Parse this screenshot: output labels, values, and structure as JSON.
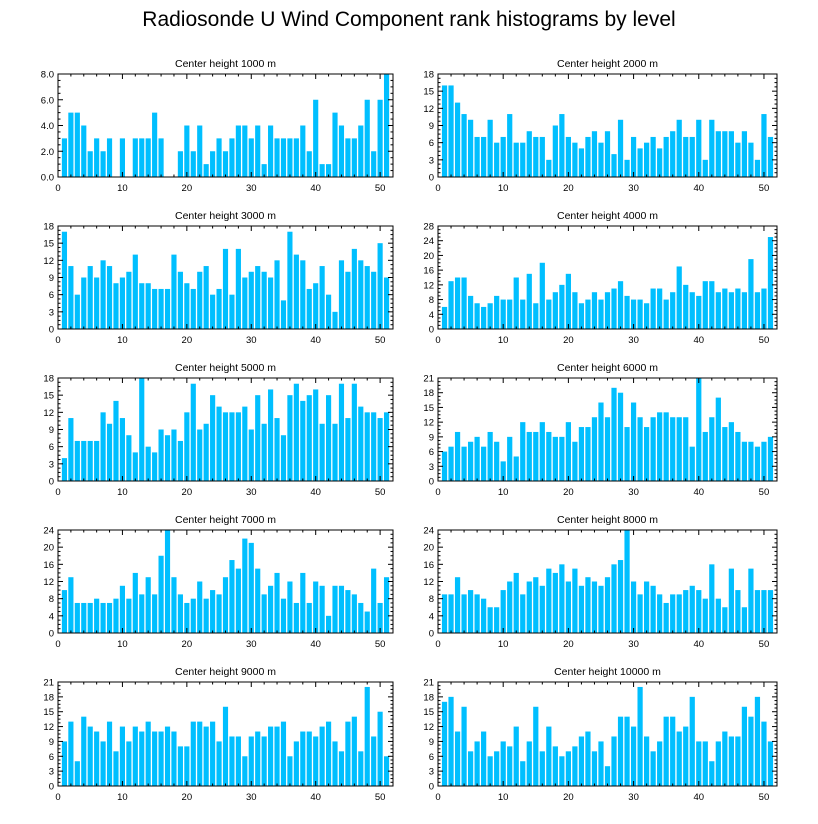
{
  "title": "Radiosonde U Wind Component rank histograms by level",
  "colors": {
    "bar": "#00BFFF",
    "axis": "#000000",
    "background": "#ffffff"
  },
  "chart_data": [
    {
      "type": "bar",
      "title": "Center height 1000 m",
      "x": [
        1,
        2,
        3,
        4,
        5,
        6,
        7,
        8,
        9,
        10,
        11,
        12,
        13,
        14,
        15,
        16,
        17,
        18,
        19,
        20,
        21,
        22,
        23,
        24,
        25,
        26,
        27,
        28,
        29,
        30,
        31,
        32,
        33,
        34,
        35,
        36,
        37,
        38,
        39,
        40,
        41,
        42,
        43,
        44,
        45,
        46,
        47,
        48,
        49,
        50,
        51
      ],
      "values": [
        3,
        5,
        5,
        4,
        2,
        3,
        2,
        3,
        0,
        3,
        0,
        3,
        3,
        3,
        5,
        3,
        0,
        0,
        2,
        4,
        2,
        4,
        1,
        2,
        3,
        2,
        3,
        4,
        4,
        3,
        4,
        1,
        4,
        3,
        3,
        3,
        3,
        4,
        2,
        6,
        1,
        1,
        5,
        4,
        3,
        3,
        4,
        6,
        2,
        6,
        8
      ],
      "xlim": [
        0,
        52
      ],
      "ylim": [
        0,
        8
      ],
      "xticks": [
        0,
        10,
        20,
        30,
        40,
        50
      ],
      "yticks": [
        0,
        2,
        4,
        6,
        8
      ],
      "ytick_labels": [
        "0.0",
        "2.0",
        "4.0",
        "6.0",
        "8.0"
      ],
      "xlabel": "",
      "ylabel": ""
    },
    {
      "type": "bar",
      "title": "Center height 2000 m",
      "x": [
        1,
        2,
        3,
        4,
        5,
        6,
        7,
        8,
        9,
        10,
        11,
        12,
        13,
        14,
        15,
        16,
        17,
        18,
        19,
        20,
        21,
        22,
        23,
        24,
        25,
        26,
        27,
        28,
        29,
        30,
        31,
        32,
        33,
        34,
        35,
        36,
        37,
        38,
        39,
        40,
        41,
        42,
        43,
        44,
        45,
        46,
        47,
        48,
        49,
        50,
        51
      ],
      "values": [
        16,
        16,
        13,
        11,
        10,
        7,
        7,
        10,
        6,
        7,
        11,
        6,
        6,
        8,
        7,
        7,
        3,
        9,
        11,
        7,
        6,
        5,
        7,
        8,
        6,
        8,
        4,
        10,
        3,
        7,
        5,
        6,
        7,
        5,
        7,
        8,
        10,
        7,
        7,
        10,
        3,
        10,
        8,
        8,
        8,
        6,
        8,
        6,
        3,
        11,
        7
      ],
      "xlim": [
        0,
        52
      ],
      "ylim": [
        0,
        18
      ],
      "xticks": [
        0,
        10,
        20,
        30,
        40,
        50
      ],
      "yticks": [
        0,
        3,
        6,
        9,
        12,
        15,
        18
      ],
      "ytick_labels": [
        "0",
        "3",
        "6",
        "9",
        "12",
        "15",
        "18"
      ],
      "xlabel": "",
      "ylabel": ""
    },
    {
      "type": "bar",
      "title": "Center height 3000 m",
      "x": [
        1,
        2,
        3,
        4,
        5,
        6,
        7,
        8,
        9,
        10,
        11,
        12,
        13,
        14,
        15,
        16,
        17,
        18,
        19,
        20,
        21,
        22,
        23,
        24,
        25,
        26,
        27,
        28,
        29,
        30,
        31,
        32,
        33,
        34,
        35,
        36,
        37,
        38,
        39,
        40,
        41,
        42,
        43,
        44,
        45,
        46,
        47,
        48,
        49,
        50,
        51
      ],
      "values": [
        17,
        11,
        6,
        9,
        11,
        9,
        12,
        11,
        8,
        9,
        10,
        13,
        8,
        8,
        7,
        7,
        7,
        13,
        10,
        8,
        7,
        10,
        11,
        6,
        7,
        14,
        6,
        14,
        9,
        10,
        11,
        10,
        9,
        12,
        5,
        17,
        13,
        12,
        7,
        8,
        11,
        6,
        3,
        12,
        10,
        14,
        12,
        11,
        10,
        15,
        9
      ],
      "xlim": [
        0,
        52
      ],
      "ylim": [
        0,
        18
      ],
      "xticks": [
        0,
        10,
        20,
        30,
        40,
        50
      ],
      "yticks": [
        0,
        3,
        6,
        9,
        12,
        15,
        18
      ],
      "ytick_labels": [
        "0",
        "3",
        "6",
        "9",
        "12",
        "15",
        "18"
      ],
      "xlabel": "",
      "ylabel": ""
    },
    {
      "type": "bar",
      "title": "Center height 4000 m",
      "x": [
        1,
        2,
        3,
        4,
        5,
        6,
        7,
        8,
        9,
        10,
        11,
        12,
        13,
        14,
        15,
        16,
        17,
        18,
        19,
        20,
        21,
        22,
        23,
        24,
        25,
        26,
        27,
        28,
        29,
        30,
        31,
        32,
        33,
        34,
        35,
        36,
        37,
        38,
        39,
        40,
        41,
        42,
        43,
        44,
        45,
        46,
        47,
        48,
        49,
        50,
        51
      ],
      "values": [
        6,
        13,
        14,
        14,
        9,
        7,
        6,
        7,
        9,
        8,
        8,
        14,
        8,
        15,
        7,
        18,
        8,
        10,
        12,
        15,
        10,
        7,
        8,
        10,
        8,
        10,
        11,
        13,
        9,
        8,
        8,
        7,
        11,
        11,
        8,
        10,
        17,
        12,
        10,
        9,
        13,
        13,
        10,
        11,
        10,
        11,
        10,
        19,
        10,
        11,
        25
      ],
      "xlim": [
        0,
        52
      ],
      "ylim": [
        0,
        28
      ],
      "xticks": [
        0,
        10,
        20,
        30,
        40,
        50
      ],
      "yticks": [
        0,
        4,
        8,
        12,
        16,
        20,
        24,
        28
      ],
      "ytick_labels": [
        "0",
        "4",
        "8",
        "12",
        "16",
        "20",
        "24",
        "28"
      ],
      "xlabel": "",
      "ylabel": ""
    },
    {
      "type": "bar",
      "title": "Center height 5000 m",
      "x": [
        1,
        2,
        3,
        4,
        5,
        6,
        7,
        8,
        9,
        10,
        11,
        12,
        13,
        14,
        15,
        16,
        17,
        18,
        19,
        20,
        21,
        22,
        23,
        24,
        25,
        26,
        27,
        28,
        29,
        30,
        31,
        32,
        33,
        34,
        35,
        36,
        37,
        38,
        39,
        40,
        41,
        42,
        43,
        44,
        45,
        46,
        47,
        48,
        49,
        50,
        51
      ],
      "values": [
        4,
        11,
        7,
        7,
        7,
        7,
        12,
        10,
        14,
        11,
        8,
        5,
        18,
        6,
        5,
        9,
        8,
        9,
        7,
        12,
        17,
        9,
        10,
        15,
        13,
        12,
        12,
        12,
        13,
        9,
        15,
        10,
        16,
        11,
        8,
        15,
        17,
        14,
        15,
        16,
        10,
        15,
        10,
        17,
        11,
        17,
        13,
        12,
        12,
        11,
        12
      ],
      "xlim": [
        0,
        52
      ],
      "ylim": [
        0,
        18
      ],
      "xticks": [
        0,
        10,
        20,
        30,
        40,
        50
      ],
      "yticks": [
        0,
        3,
        6,
        9,
        12,
        15,
        18
      ],
      "ytick_labels": [
        "0",
        "3",
        "6",
        "9",
        "12",
        "15",
        "18"
      ],
      "xlabel": "",
      "ylabel": ""
    },
    {
      "type": "bar",
      "title": "Center height 6000 m",
      "x": [
        1,
        2,
        3,
        4,
        5,
        6,
        7,
        8,
        9,
        10,
        11,
        12,
        13,
        14,
        15,
        16,
        17,
        18,
        19,
        20,
        21,
        22,
        23,
        24,
        25,
        26,
        27,
        28,
        29,
        30,
        31,
        32,
        33,
        34,
        35,
        36,
        37,
        38,
        39,
        40,
        41,
        42,
        43,
        44,
        45,
        46,
        47,
        48,
        49,
        50,
        51
      ],
      "values": [
        6,
        7,
        10,
        7,
        8,
        9,
        7,
        10,
        8,
        4,
        9,
        5,
        12,
        10,
        10,
        12,
        10,
        9,
        9,
        12,
        8,
        11,
        11,
        13,
        16,
        13,
        19,
        18,
        11,
        16,
        13,
        11,
        13,
        14,
        14,
        13,
        13,
        13,
        7,
        21,
        10,
        13,
        17,
        11,
        12,
        10,
        8,
        8,
        7,
        8,
        9
      ],
      "xlim": [
        0,
        52
      ],
      "ylim": [
        0,
        21
      ],
      "xticks": [
        0,
        10,
        20,
        30,
        40,
        50
      ],
      "yticks": [
        0,
        3,
        6,
        9,
        12,
        15,
        18,
        21
      ],
      "ytick_labels": [
        "0",
        "3",
        "6",
        "9",
        "12",
        "15",
        "18",
        "21"
      ],
      "xlabel": "",
      "ylabel": ""
    },
    {
      "type": "bar",
      "title": "Center height 7000 m",
      "x": [
        1,
        2,
        3,
        4,
        5,
        6,
        7,
        8,
        9,
        10,
        11,
        12,
        13,
        14,
        15,
        16,
        17,
        18,
        19,
        20,
        21,
        22,
        23,
        24,
        25,
        26,
        27,
        28,
        29,
        30,
        31,
        32,
        33,
        34,
        35,
        36,
        37,
        38,
        39,
        40,
        41,
        42,
        43,
        44,
        45,
        46,
        47,
        48,
        49,
        50,
        51
      ],
      "values": [
        10,
        13,
        7,
        7,
        7,
        8,
        7,
        7,
        8,
        11,
        8,
        14,
        9,
        13,
        9,
        18,
        24,
        13,
        9,
        7,
        8,
        12,
        8,
        10,
        9,
        13,
        17,
        15,
        22,
        21,
        15,
        9,
        11,
        14,
        8,
        12,
        7,
        14,
        7,
        12,
        11,
        4,
        11,
        11,
        10,
        9,
        7,
        5,
        15,
        7,
        13
      ],
      "xlim": [
        0,
        52
      ],
      "ylim": [
        0,
        24
      ],
      "xticks": [
        0,
        10,
        20,
        30,
        40,
        50
      ],
      "yticks": [
        0,
        4,
        8,
        12,
        16,
        20,
        24
      ],
      "ytick_labels": [
        "0",
        "4",
        "8",
        "12",
        "16",
        "20",
        "24"
      ],
      "xlabel": "",
      "ylabel": ""
    },
    {
      "type": "bar",
      "title": "Center height 8000 m",
      "x": [
        1,
        2,
        3,
        4,
        5,
        6,
        7,
        8,
        9,
        10,
        11,
        12,
        13,
        14,
        15,
        16,
        17,
        18,
        19,
        20,
        21,
        22,
        23,
        24,
        25,
        26,
        27,
        28,
        29,
        30,
        31,
        32,
        33,
        34,
        35,
        36,
        37,
        38,
        39,
        40,
        41,
        42,
        43,
        44,
        45,
        46,
        47,
        48,
        49,
        50,
        51
      ],
      "values": [
        9,
        9,
        13,
        9,
        10,
        9,
        8,
        6,
        6,
        10,
        12,
        14,
        9,
        12,
        13,
        11,
        15,
        14,
        16,
        12,
        15,
        11,
        13,
        12,
        11,
        13,
        16,
        17,
        24,
        12,
        9,
        12,
        11,
        9,
        7,
        9,
        9,
        10,
        11,
        10,
        8,
        16,
        8,
        6,
        15,
        10,
        6,
        15,
        10,
        10,
        10
      ],
      "xlim": [
        0,
        52
      ],
      "ylim": [
        0,
        24
      ],
      "xticks": [
        0,
        10,
        20,
        30,
        40,
        50
      ],
      "yticks": [
        0,
        4,
        8,
        12,
        16,
        20,
        24
      ],
      "ytick_labels": [
        "0",
        "4",
        "8",
        "12",
        "16",
        "20",
        "24"
      ],
      "xlabel": "",
      "ylabel": ""
    },
    {
      "type": "bar",
      "title": "Center height 9000 m",
      "x": [
        1,
        2,
        3,
        4,
        5,
        6,
        7,
        8,
        9,
        10,
        11,
        12,
        13,
        14,
        15,
        16,
        17,
        18,
        19,
        20,
        21,
        22,
        23,
        24,
        25,
        26,
        27,
        28,
        29,
        30,
        31,
        32,
        33,
        34,
        35,
        36,
        37,
        38,
        39,
        40,
        41,
        42,
        43,
        44,
        45,
        46,
        47,
        48,
        49,
        50,
        51
      ],
      "values": [
        9,
        13,
        5,
        14,
        12,
        11,
        9,
        13,
        7,
        12,
        9,
        12,
        11,
        13,
        11,
        11,
        12,
        11,
        8,
        8,
        13,
        13,
        12,
        13,
        9,
        16,
        10,
        10,
        6,
        10,
        11,
        10,
        12,
        12,
        13,
        6,
        9,
        11,
        11,
        10,
        12,
        13,
        9,
        7,
        13,
        14,
        7,
        20,
        10,
        15,
        6
      ],
      "xlim": [
        0,
        52
      ],
      "ylim": [
        0,
        21
      ],
      "xticks": [
        0,
        10,
        20,
        30,
        40,
        50
      ],
      "yticks": [
        0,
        3,
        6,
        9,
        12,
        15,
        18,
        21
      ],
      "ytick_labels": [
        "0",
        "3",
        "6",
        "9",
        "12",
        "15",
        "18",
        "21"
      ],
      "xlabel": "",
      "ylabel": ""
    },
    {
      "type": "bar",
      "title": "Center height 10000 m",
      "x": [
        1,
        2,
        3,
        4,
        5,
        6,
        7,
        8,
        9,
        10,
        11,
        12,
        13,
        14,
        15,
        16,
        17,
        18,
        19,
        20,
        21,
        22,
        23,
        24,
        25,
        26,
        27,
        28,
        29,
        30,
        31,
        32,
        33,
        34,
        35,
        36,
        37,
        38,
        39,
        40,
        41,
        42,
        43,
        44,
        45,
        46,
        47,
        48,
        49,
        50,
        51
      ],
      "values": [
        17,
        18,
        11,
        16,
        7,
        9,
        11,
        6,
        7,
        9,
        8,
        12,
        5,
        9,
        16,
        7,
        12,
        8,
        6,
        7,
        8,
        10,
        11,
        7,
        9,
        4,
        10,
        14,
        14,
        12,
        20,
        10,
        7,
        9,
        14,
        14,
        11,
        12,
        18,
        9,
        9,
        5,
        9,
        11,
        10,
        10,
        16,
        14,
        18,
        13,
        9
      ],
      "xlim": [
        0,
        52
      ],
      "ylim": [
        0,
        21
      ],
      "xticks": [
        0,
        10,
        20,
        30,
        40,
        50
      ],
      "yticks": [
        0,
        3,
        6,
        9,
        12,
        15,
        18,
        21
      ],
      "ytick_labels": [
        "0",
        "3",
        "6",
        "9",
        "12",
        "15",
        "18",
        "21"
      ],
      "xlabel": "",
      "ylabel": ""
    }
  ]
}
